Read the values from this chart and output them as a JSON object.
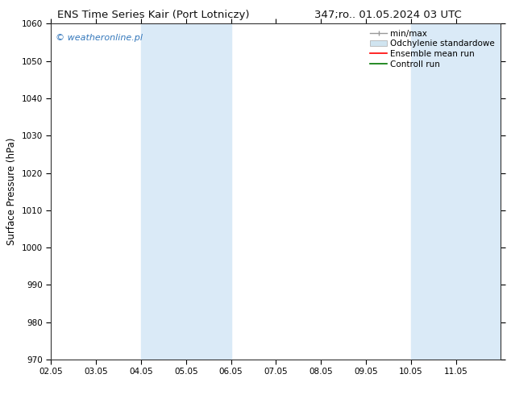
{
  "title_left": "ENS Time Series Kair (Port Lotniczy)",
  "title_right": "347;ro.. 01.05.2024 03 UTC",
  "ylabel": "Surface Pressure (hPa)",
  "ylim": [
    970,
    1060
  ],
  "yticks": [
    970,
    980,
    990,
    1000,
    1010,
    1020,
    1030,
    1040,
    1050,
    1060
  ],
  "xlim_min": 0,
  "xlim_max": 10,
  "xtick_labels": [
    "02.05",
    "03.05",
    "04.05",
    "05.05",
    "06.05",
    "07.05",
    "08.05",
    "09.05",
    "10.05",
    "11.05"
  ],
  "xtick_positions": [
    0,
    1,
    2,
    3,
    4,
    5,
    6,
    7,
    8,
    9
  ],
  "bg_color": "#ffffff",
  "plot_bg_color": "#ffffff",
  "shaded_regions": [
    {
      "xmin": 2,
      "xmax": 3,
      "color": "#daeaf7"
    },
    {
      "xmin": 3,
      "xmax": 4,
      "color": "#daeaf7"
    },
    {
      "xmin": 8,
      "xmax": 9,
      "color": "#daeaf7"
    },
    {
      "xmin": 9,
      "xmax": 10,
      "color": "#daeaf7"
    }
  ],
  "watermark_text": "© weatheronline.pl",
  "watermark_color": "#3377bb",
  "legend_min_max_color": "#999999",
  "legend_std_color": "#d0e4f0",
  "legend_ens_color": "#ff0000",
  "legend_ctrl_color": "#007700",
  "title_fontsize": 9.5,
  "tick_fontsize": 7.5,
  "ylabel_fontsize": 8.5,
  "watermark_fontsize": 8.0,
  "legend_fontsize": 7.5
}
